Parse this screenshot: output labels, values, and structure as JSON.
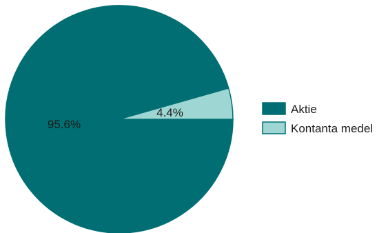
{
  "chart_data": {
    "type": "pie",
    "slices": [
      {
        "label": "Aktie",
        "value": 95.6,
        "value_label": "95.6%",
        "color": "#006e73"
      },
      {
        "label": "Kontanta medel",
        "value": 4.4,
        "value_label": "4.4%",
        "color": "#9dd6d2"
      }
    ],
    "legend_placement": "right",
    "start_angle_deg": 0,
    "direction": "counterclockwise"
  }
}
